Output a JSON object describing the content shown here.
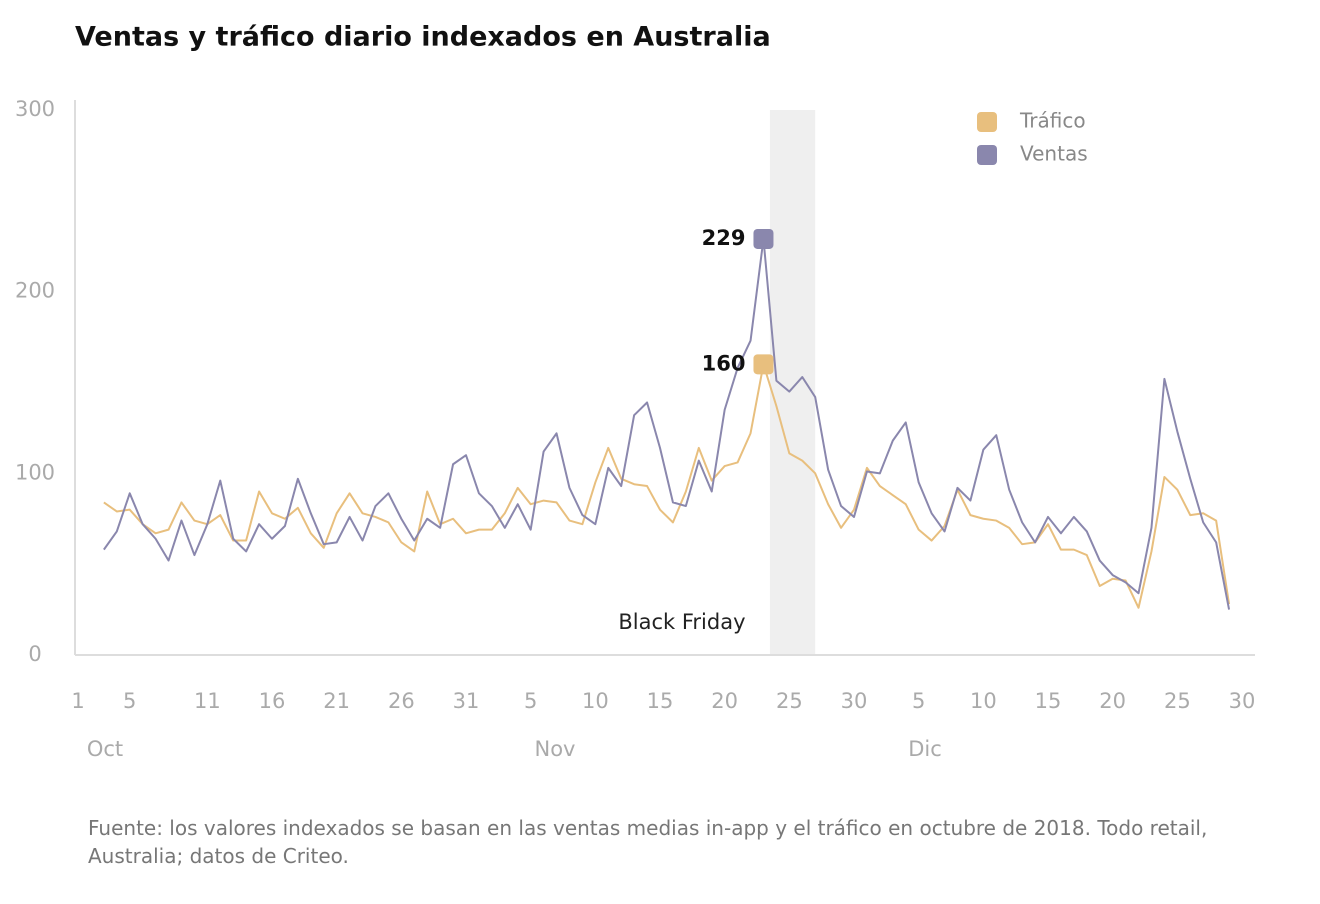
{
  "chart_data": {
    "type": "line",
    "title": "Ventas y tráfico diario indexados en Australia",
    "x": [
      3,
      4,
      5,
      6,
      7,
      8,
      9,
      10,
      11,
      12,
      13,
      14,
      15,
      16,
      17,
      18,
      19,
      20,
      21,
      22,
      23,
      24,
      25,
      26,
      27,
      28,
      29,
      30,
      31,
      32,
      33,
      34,
      35,
      36,
      37,
      38,
      39,
      40,
      41,
      42,
      43,
      44,
      45,
      46,
      47,
      48,
      49,
      50,
      51,
      52,
      53,
      54,
      55,
      56,
      57,
      58,
      59,
      60,
      61,
      62,
      63,
      64,
      65,
      66,
      67,
      68,
      69,
      70,
      71,
      72,
      73,
      74,
      75,
      76,
      77,
      78,
      79,
      80,
      81,
      82,
      83,
      84,
      85,
      86,
      87,
      88,
      89,
      90
    ],
    "series": [
      {
        "name": "Tráfico",
        "color": "#e8bf7e",
        "values": [
          84,
          79,
          80,
          72,
          67,
          69,
          84,
          74,
          72,
          77,
          63,
          63,
          90,
          78,
          75,
          81,
          67,
          59,
          78,
          89,
          78,
          76,
          73,
          62,
          57,
          90,
          72,
          75,
          67,
          69,
          69,
          78,
          92,
          83,
          85,
          84,
          74,
          72,
          95,
          114,
          97,
          94,
          93,
          80,
          73,
          90,
          114,
          96,
          104,
          106,
          122,
          160,
          137,
          111,
          107,
          100,
          83,
          70,
          80,
          103,
          93,
          88,
          83,
          69,
          63,
          71,
          91,
          77,
          75,
          74,
          70,
          61,
          62,
          72,
          58,
          58,
          55,
          38,
          42,
          41,
          26,
          57,
          98,
          91,
          77,
          78,
          74,
          28
        ]
      },
      {
        "name": "Ventas",
        "color": "#8a87ad",
        "values": [
          58,
          68,
          89,
          72,
          64,
          52,
          74,
          55,
          72,
          96,
          64,
          57,
          72,
          64,
          71,
          97,
          78,
          61,
          62,
          76,
          63,
          82,
          89,
          75,
          63,
          75,
          70,
          105,
          110,
          89,
          82,
          70,
          83,
          69,
          112,
          122,
          92,
          77,
          72,
          103,
          93,
          132,
          139,
          114,
          84,
          82,
          107,
          90,
          135,
          158,
          173,
          229,
          151,
          145,
          153,
          142,
          102,
          82,
          76,
          101,
          100,
          118,
          128,
          95,
          78,
          68,
          92,
          85,
          113,
          121,
          91,
          73,
          62,
          76,
          67,
          76,
          68,
          52,
          44,
          40,
          34,
          70,
          152,
          123,
          97,
          73,
          62,
          25
        ]
      }
    ],
    "xlim": [
      1,
      91
    ],
    "xticks": [
      1,
      5,
      11,
      16,
      21,
      26,
      31,
      {
        "value": 36,
        "label": "5"
      },
      {
        "value": 41,
        "label": "10"
      },
      {
        "value": 46,
        "label": "15"
      },
      {
        "value": 51,
        "label": "20"
      },
      {
        "value": 56,
        "label": "25"
      },
      {
        "value": 61,
        "label": "30"
      },
      {
        "value": 66,
        "label": "5"
      },
      {
        "value": 71,
        "label": "10"
      },
      {
        "value": 76,
        "label": "15"
      },
      {
        "value": 81,
        "label": "20"
      },
      {
        "value": 86,
        "label": "25"
      },
      {
        "value": 91,
        "label": "30"
      }
    ],
    "month_labels": [
      "Oct",
      "Nov",
      "Dic"
    ],
    "ylim": [
      0,
      300
    ],
    "yticks": [
      0,
      100,
      200,
      300
    ],
    "highlight": {
      "label": "Black Friday",
      "xlim": [
        54.5,
        58
      ]
    },
    "peak_index": 51,
    "legend": "upper right",
    "note": "Fuente: los valores indexados se basan en las ventas medias in-app y el tráfico en octubre de 2018. Todo retail, Australia; datos de Criteo."
  }
}
